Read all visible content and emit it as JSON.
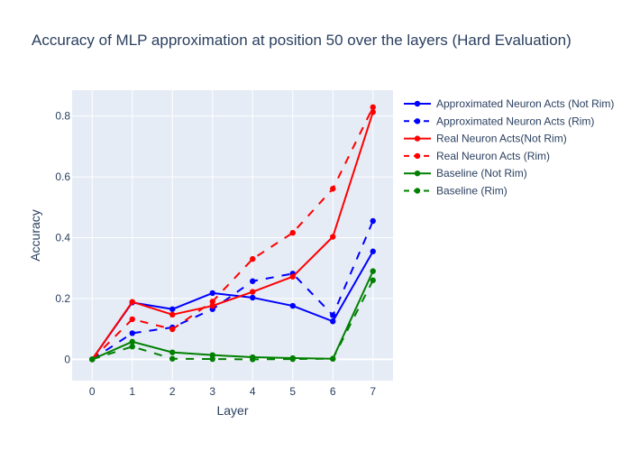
{
  "chart_data": {
    "type": "line",
    "title": "Accuracy of MLP approximation at position 50 over the layers (Hard Evaluation)",
    "xlabel": "Layer",
    "ylabel": "Accuracy",
    "x": [
      0,
      1,
      2,
      3,
      4,
      5,
      6,
      7
    ],
    "xlim": [
      -0.5,
      7.5
    ],
    "ylim": [
      -0.07,
      0.885
    ],
    "xticks": [
      0,
      1,
      2,
      3,
      4,
      5,
      6,
      7
    ],
    "yticks": [
      0,
      0.2,
      0.4,
      0.6,
      0.8
    ],
    "ytick_labels": [
      "0",
      "0.2",
      "0.4",
      "0.6",
      "0.8"
    ],
    "grid": true,
    "legend_position": "right",
    "plot_background": "#E5ECF6",
    "series": [
      {
        "name": "Approximated Neuron Acts (Not Rim)",
        "color": "#0000ff",
        "dash": "solid",
        "values": [
          0.0,
          0.187,
          0.165,
          0.218,
          0.203,
          0.176,
          0.125,
          0.355
        ]
      },
      {
        "name": "Approximated Neuron Acts (Rim)",
        "color": "#0000ff",
        "dash": "dash",
        "values": [
          0.0,
          0.086,
          0.105,
          0.165,
          0.257,
          0.282,
          0.145,
          0.455
        ]
      },
      {
        "name": "Real Neuron Acts(Not Rim)",
        "color": "#ff0000",
        "dash": "solid",
        "values": [
          0.0,
          0.189,
          0.147,
          0.176,
          0.222,
          0.272,
          0.403,
          0.813
        ]
      },
      {
        "name": "Real Neuron Acts (Rim)",
        "color": "#ff0000",
        "dash": "dash",
        "values": [
          0.0,
          0.132,
          0.099,
          0.19,
          0.33,
          0.416,
          0.561,
          0.829
        ]
      },
      {
        "name": "Baseline (Not Rim)",
        "color": "#008000",
        "dash": "solid",
        "values": [
          0.0,
          0.058,
          0.023,
          0.014,
          0.007,
          0.004,
          0.002,
          0.29
        ]
      },
      {
        "name": "Baseline (Rim)",
        "color": "#008000",
        "dash": "dash",
        "values": [
          0.0,
          0.042,
          0.002,
          0.001,
          0.0,
          0.001,
          0.002,
          0.26
        ]
      }
    ]
  }
}
